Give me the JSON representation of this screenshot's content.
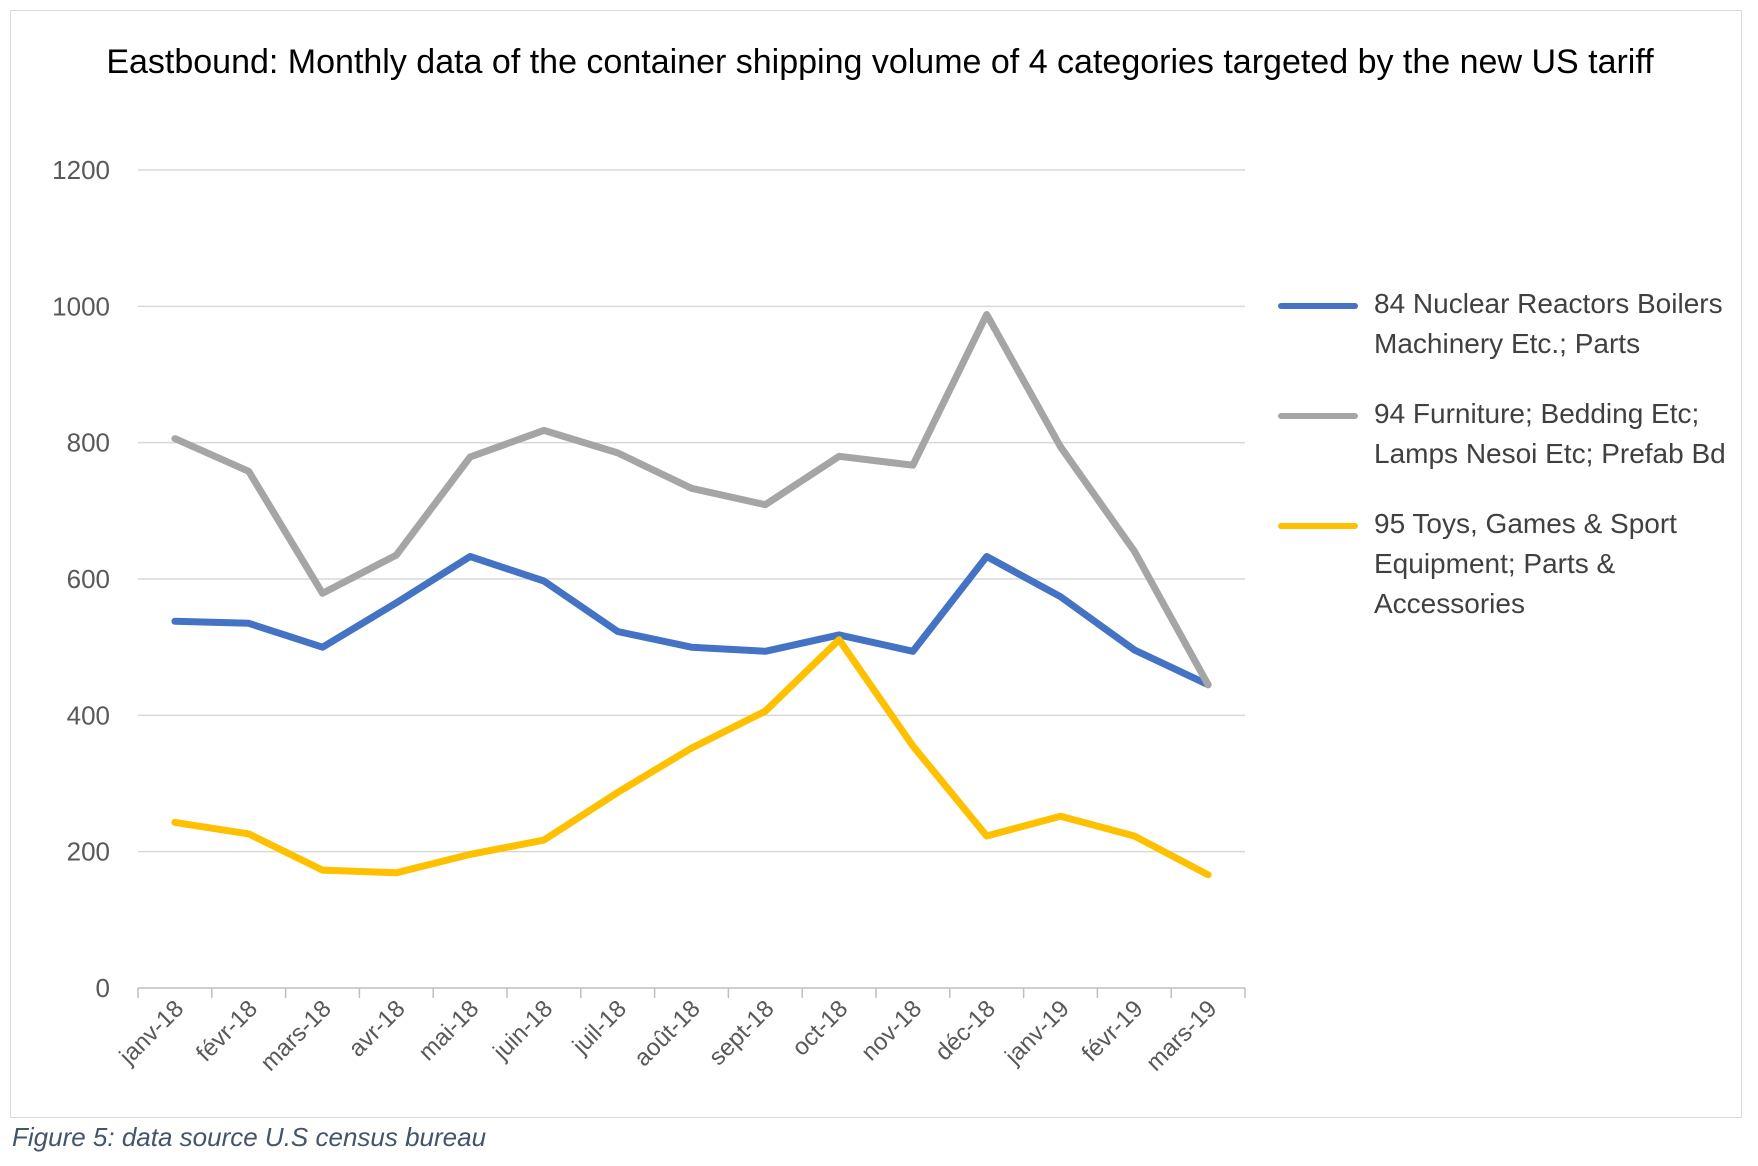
{
  "chart_data": {
    "type": "line",
    "title": "Eastbound: Monthly data of the container shipping volume of 4 categories targeted by the new US tariff",
    "categories": [
      "janv-18",
      "févr-18",
      "mars-18",
      "avr-18",
      "mai-18",
      "juin-18",
      "juil-18",
      "août-18",
      "sept-18",
      "oct-18",
      "nov-18",
      "déc-18",
      "janv-19",
      "févr-19",
      "mars-19"
    ],
    "ylim": [
      0,
      1200
    ],
    "yticks": [
      0,
      200,
      400,
      600,
      800,
      1000,
      1200
    ],
    "grid": true,
    "legend_position": "right",
    "series": [
      {
        "name": "84 Nuclear Reactors Boilers Machinery Etc.; Parts",
        "color": "#4472c4",
        "values": [
          538,
          535,
          500,
          565,
          633,
          597,
          523,
          500,
          494,
          518,
          494,
          633,
          574,
          496,
          445
        ]
      },
      {
        "name": "94 Furniture; Bedding Etc; Lamps Nesoi Etc; Prefab Bd",
        "color": "#a5a5a5",
        "values": [
          806,
          758,
          579,
          635,
          779,
          818,
          785,
          733,
          709,
          780,
          767,
          988,
          794,
          641,
          445
        ]
      },
      {
        "name": "95 Toys, Games & Sport Equipment; Parts & Accessories",
        "color": "#ffc000",
        "values": [
          243,
          226,
          173,
          169,
          196,
          217,
          287,
          352,
          406,
          511,
          355,
          223,
          252,
          223,
          166
        ]
      }
    ]
  },
  "caption": "Figure 5: data source U.S census bureau"
}
